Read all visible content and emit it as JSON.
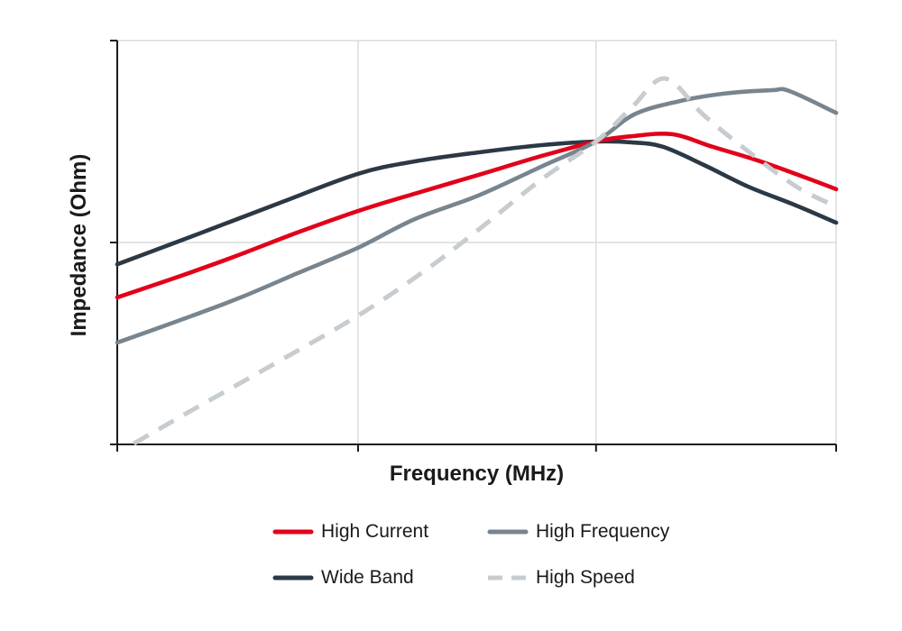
{
  "style": {
    "background": "#ffffff",
    "axis_color": "#1a1a1a",
    "grid_color": "#dcdcdc",
    "text_color": "#1a1a1a"
  },
  "chart_data": {
    "type": "line",
    "title": "",
    "xlabel": "Frequency (MHz)",
    "ylabel": "Impedance (Ohm)",
    "x_scale": "log, 3 unlabeled decade intervals between ticks",
    "y_scale": "log, 2 unlabeled decade intervals between ticks",
    "axis_tick_labels": "none shown",
    "grid": {
      "x_pct": [
        33.5,
        66.6
      ],
      "y_pct": [
        50
      ]
    },
    "ticks": {
      "x_pct": [
        0,
        33.5,
        66.6,
        100
      ],
      "y_pct": [
        0,
        50,
        100
      ]
    },
    "points_format": "percent of plot area: x from left axis, y up from bottom axis",
    "series": [
      {
        "name": "High Current",
        "color": "#e2001a",
        "dash": false,
        "points": [
          [
            0,
            36.4
          ],
          [
            8.8,
            41.7
          ],
          [
            16.9,
            46.9
          ],
          [
            25.1,
            52.5
          ],
          [
            33.5,
            57.8
          ],
          [
            41.4,
            62.1
          ],
          [
            50.2,
            66.7
          ],
          [
            59.0,
            71.4
          ],
          [
            66.6,
            75.0
          ],
          [
            71.5,
            76.3
          ],
          [
            77.2,
            76.8
          ],
          [
            82.8,
            73.7
          ],
          [
            89.1,
            70.3
          ],
          [
            95.4,
            66.3
          ],
          [
            100,
            63.2
          ]
        ]
      },
      {
        "name": "High Frequency",
        "color": "#78858f",
        "dash": false,
        "points": [
          [
            0,
            25.2
          ],
          [
            8.8,
            30.8
          ],
          [
            16.9,
            36.2
          ],
          [
            25.1,
            42.4
          ],
          [
            33.5,
            48.7
          ],
          [
            41.4,
            55.8
          ],
          [
            50.2,
            61.6
          ],
          [
            59.0,
            68.8
          ],
          [
            66.6,
            75.0
          ],
          [
            71.9,
            81.7
          ],
          [
            78.2,
            85.0
          ],
          [
            84.1,
            86.8
          ],
          [
            91.0,
            87.7
          ],
          [
            93.5,
            87.5
          ],
          [
            100,
            82.1
          ]
        ]
      },
      {
        "name": "Wide Band",
        "color": "#2c3945",
        "dash": false,
        "points": [
          [
            0,
            44.6
          ],
          [
            7.5,
            49.6
          ],
          [
            15.1,
            54.7
          ],
          [
            22.6,
            59.8
          ],
          [
            33.5,
            67.0
          ],
          [
            41.4,
            70.1
          ],
          [
            50.2,
            72.3
          ],
          [
            59.0,
            74.1
          ],
          [
            66.6,
            75.0
          ],
          [
            71.5,
            74.8
          ],
          [
            75.9,
            73.7
          ],
          [
            81.6,
            69.2
          ],
          [
            87.8,
            63.8
          ],
          [
            94.1,
            59.4
          ],
          [
            100,
            54.9
          ]
        ]
      },
      {
        "name": "High Speed",
        "color": "#c6ccd0",
        "dash": true,
        "points": [
          [
            2.3,
            0.2
          ],
          [
            11.3,
            9.4
          ],
          [
            21.3,
            19.4
          ],
          [
            33.5,
            31.9
          ],
          [
            42.7,
            42.9
          ],
          [
            50.2,
            53.1
          ],
          [
            59.0,
            65.6
          ],
          [
            66.6,
            75.0
          ],
          [
            71.5,
            83.3
          ],
          [
            76.2,
            90.6
          ],
          [
            81.6,
            81.5
          ],
          [
            87.8,
            72.5
          ],
          [
            94.5,
            63.8
          ],
          [
            100,
            58.9
          ]
        ]
      }
    ],
    "legend_position": "below chart, two columns"
  },
  "legend": {
    "items": [
      "High Current",
      "High Frequency",
      "Wide Band",
      "High Speed"
    ]
  }
}
